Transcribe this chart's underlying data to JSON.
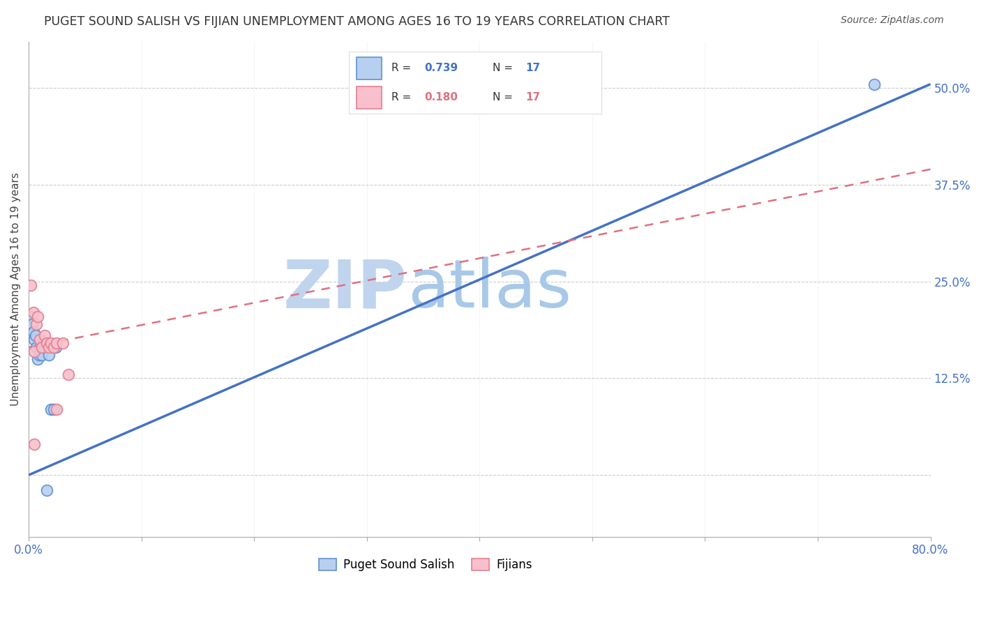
{
  "title": "PUGET SOUND SALISH VS FIJIAN UNEMPLOYMENT AMONG AGES 16 TO 19 YEARS CORRELATION CHART",
  "source": "Source: ZipAtlas.com",
  "ylabel": "Unemployment Among Ages 16 to 19 years",
  "r_blue": 0.739,
  "n_blue": 17,
  "r_pink": 0.18,
  "n_pink": 17,
  "watermark_zip": "ZIP",
  "watermark_atlas": "atlas",
  "xlim": [
    0.0,
    0.8
  ],
  "ylim": [
    -0.08,
    0.56
  ],
  "xtick_vals": [
    0.0,
    0.1,
    0.2,
    0.3,
    0.4,
    0.5,
    0.6,
    0.7,
    0.8
  ],
  "ytick_vals": [
    0.0,
    0.125,
    0.25,
    0.375,
    0.5
  ],
  "blue_scatter_x": [
    0.002,
    0.003,
    0.004,
    0.005,
    0.006,
    0.007,
    0.008,
    0.009,
    0.01,
    0.012,
    0.014,
    0.016,
    0.018,
    0.02,
    0.022,
    0.024,
    0.75
  ],
  "blue_scatter_y": [
    0.205,
    0.195,
    0.185,
    0.175,
    0.18,
    0.165,
    0.15,
    0.155,
    0.165,
    0.155,
    0.165,
    -0.02,
    0.155,
    0.085,
    0.085,
    0.165,
    0.505
  ],
  "pink_scatter_x": [
    0.002,
    0.004,
    0.005,
    0.007,
    0.008,
    0.01,
    0.012,
    0.014,
    0.016,
    0.018,
    0.02,
    0.022,
    0.025,
    0.025,
    0.03,
    0.035,
    0.005
  ],
  "pink_scatter_y": [
    0.245,
    0.21,
    0.16,
    0.195,
    0.205,
    0.175,
    0.165,
    0.18,
    0.17,
    0.165,
    0.17,
    0.165,
    0.17,
    0.085,
    0.17,
    0.13,
    0.04
  ],
  "blue_line_x0": 0.0,
  "blue_line_y0": 0.0,
  "blue_line_x1": 0.8,
  "blue_line_y1": 0.505,
  "pink_line_x0": 0.0,
  "pink_line_y0": 0.165,
  "pink_line_x1": 0.8,
  "pink_line_y1": 0.395,
  "blue_line_color": "#4472C4",
  "pink_line_color": "#E07080",
  "blue_scatter_facecolor": "#B8D0F0",
  "blue_scatter_edgecolor": "#6090D0",
  "pink_scatter_facecolor": "#F8C0CC",
  "pink_scatter_edgecolor": "#E08090",
  "grid_color": "#CCCCCC",
  "axis_tick_color": "#4472C4",
  "title_color": "#333333",
  "source_color": "#555555",
  "watermark_zip_color": "#C0D4EE",
  "watermark_atlas_color": "#A8C8E8",
  "background_color": "#FFFFFF"
}
